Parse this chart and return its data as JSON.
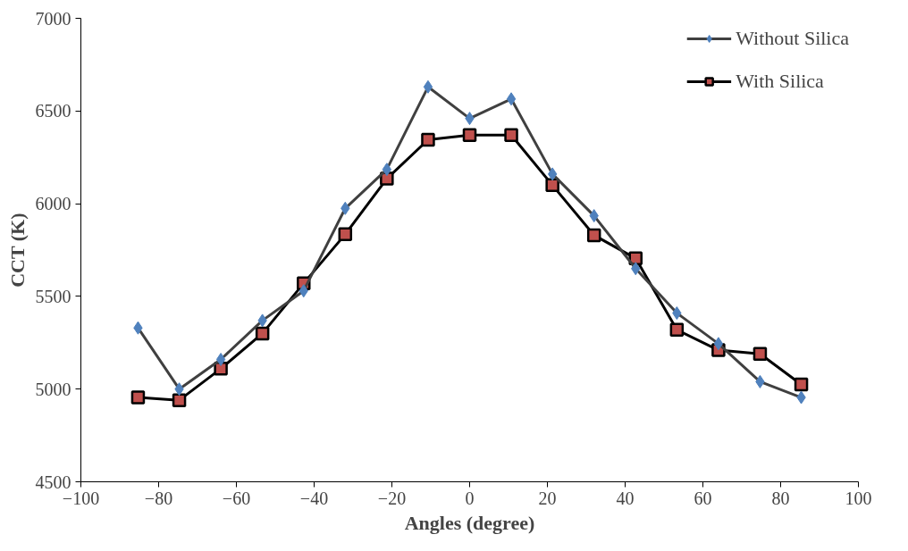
{
  "chart_data": {
    "type": "line",
    "xlabel": "Angles (degree)",
    "ylabel": "CCT (K)",
    "x": [
      -85.3,
      -74.7,
      -64,
      -53.3,
      -42.7,
      -32,
      -21.3,
      -10.7,
      0,
      10.7,
      21.3,
      32,
      42.7,
      53.3,
      64,
      74.7,
      85.3
    ],
    "series": [
      {
        "name": "Without Silica",
        "color": "#4f81bd",
        "marker": "diamond",
        "values": [
          5330,
          5000,
          5160,
          5370,
          5530,
          5975,
          6185,
          6630,
          6460,
          6565,
          6160,
          5935,
          5650,
          5410,
          5245,
          5040,
          4955
        ]
      },
      {
        "name": "With Silica",
        "color": "#c0504d",
        "marker": "square",
        "values": [
          4955,
          4940,
          5110,
          5300,
          5570,
          5835,
          6135,
          6345,
          6370,
          6370,
          6100,
          5830,
          5705,
          5320,
          5210,
          5190,
          5025
        ]
      }
    ],
    "xlim": [
      -100,
      100
    ],
    "xticks": [
      -100,
      -80,
      -60,
      -40,
      -20,
      0,
      20,
      40,
      60,
      80,
      100
    ],
    "ylim": [
      4500,
      7000
    ],
    "yticks": [
      4500,
      5000,
      5500,
      6000,
      6500,
      7000
    ],
    "grid": false,
    "legend": "top right",
    "line_style": "solid"
  }
}
